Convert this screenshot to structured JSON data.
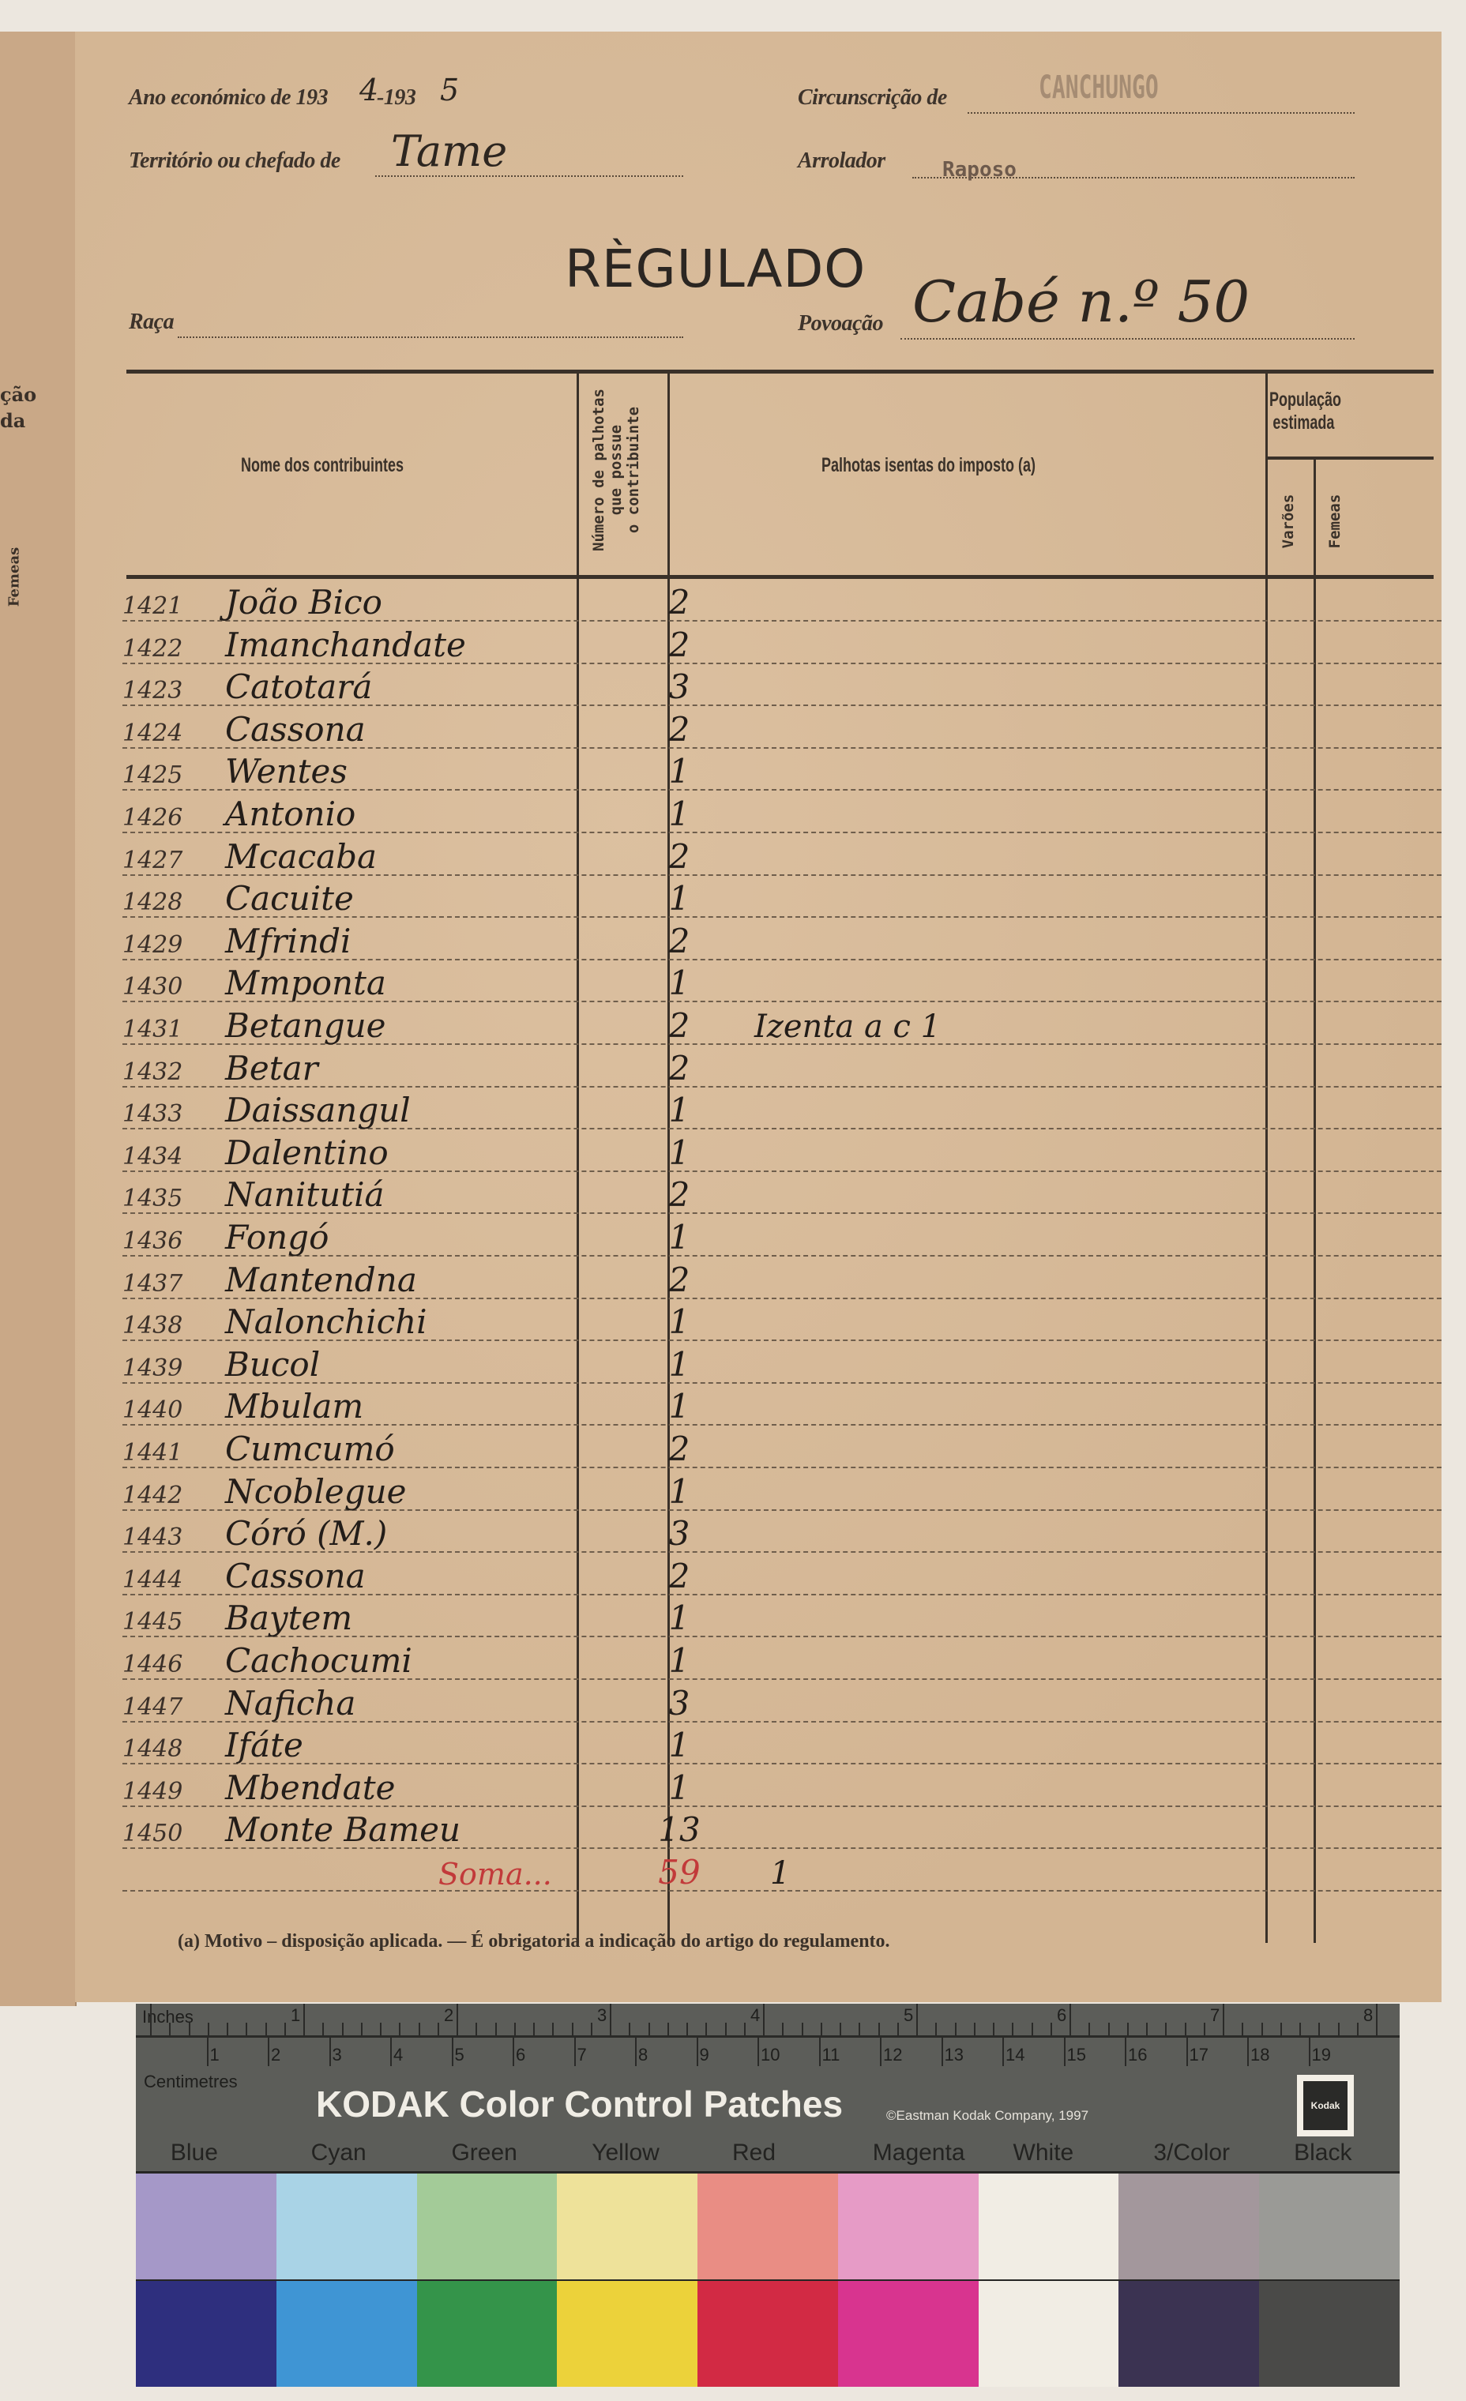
{
  "left_page": {
    "fragments": [
      "ção",
      "da",
      "Femeas"
    ]
  },
  "header": {
    "ano_label": "Ano económico de 193",
    "ano_start_digit": "4",
    "ano_sep": "-193",
    "ano_end_digit": "5",
    "territorio_label": "Território ou chefado de",
    "territorio_value": "Tame",
    "circunscricao_label": "Circunscrição de",
    "circunscricao_value": "CANCHUNGO",
    "arrolador_label": "Arrolador",
    "arrolador_value": "Raposo",
    "title": "RÈGULADO",
    "raca_label": "Raça",
    "povoacao_label": "Povoação",
    "povoacao_value": "Cabé n.º 50"
  },
  "table": {
    "columns": {
      "name": "Nome dos contribuintes",
      "count_lines": [
        "Número de palhotas",
        "que possue",
        "o contribuinte"
      ],
      "exempt": "Palhotas isentas do imposto (a)",
      "population": [
        "População",
        "estimada"
      ],
      "males": "Varões",
      "females": "Femeas"
    },
    "rows": [
      {
        "num": "1421",
        "name": "João Bico",
        "count": "2",
        "exempt": ""
      },
      {
        "num": "1422",
        "name": "Imanchandate",
        "count": "2",
        "exempt": ""
      },
      {
        "num": "1423",
        "name": "Catotará",
        "count": "3",
        "exempt": ""
      },
      {
        "num": "1424",
        "name": "Cassona",
        "count": "2",
        "exempt": ""
      },
      {
        "num": "1425",
        "name": "Wentes",
        "count": "1",
        "exempt": ""
      },
      {
        "num": "1426",
        "name": "Antonio",
        "count": "1",
        "exempt": ""
      },
      {
        "num": "1427",
        "name": "Mcacaba",
        "count": "2",
        "exempt": ""
      },
      {
        "num": "1428",
        "name": "Cacuite",
        "count": "1",
        "exempt": ""
      },
      {
        "num": "1429",
        "name": "Mfrindi",
        "count": "2",
        "exempt": ""
      },
      {
        "num": "1430",
        "name": "Mmponta",
        "count": "1",
        "exempt": ""
      },
      {
        "num": "1431",
        "name": "Betangue",
        "count": "2",
        "exempt": "Izenta a c 1"
      },
      {
        "num": "1432",
        "name": "Betar",
        "count": "2",
        "exempt": ""
      },
      {
        "num": "1433",
        "name": "Daissangul",
        "count": "1",
        "exempt": ""
      },
      {
        "num": "1434",
        "name": "Dalentino",
        "count": "1",
        "exempt": ""
      },
      {
        "num": "1435",
        "name": "Nanitutiá",
        "count": "2",
        "exempt": ""
      },
      {
        "num": "1436",
        "name": "Fongó",
        "count": "1",
        "exempt": ""
      },
      {
        "num": "1437",
        "name": "Mantendna",
        "count": "2",
        "exempt": ""
      },
      {
        "num": "1438",
        "name": "Nalonchichi",
        "count": "1",
        "exempt": ""
      },
      {
        "num": "1439",
        "name": "Bucol",
        "count": "1",
        "exempt": ""
      },
      {
        "num": "1440",
        "name": "Mbulam",
        "count": "1",
        "exempt": ""
      },
      {
        "num": "1441",
        "name": "Cumcumó",
        "count": "2",
        "exempt": ""
      },
      {
        "num": "1442",
        "name": "Ncoblegue",
        "count": "1",
        "exempt": ""
      },
      {
        "num": "1443",
        "name": "Córó (M.)",
        "count": "3",
        "exempt": ""
      },
      {
        "num": "1444",
        "name": "Cassona",
        "count": "2",
        "exempt": ""
      },
      {
        "num": "1445",
        "name": "Baytem",
        "count": "1",
        "exempt": ""
      },
      {
        "num": "1446",
        "name": "Cachocumi",
        "count": "1",
        "exempt": ""
      },
      {
        "num": "1447",
        "name": "Naficha",
        "count": "3",
        "exempt": ""
      },
      {
        "num": "1448",
        "name": "Ifáte",
        "count": "1",
        "exempt": ""
      },
      {
        "num": "1449",
        "name": "Mbendate",
        "count": "1",
        "exempt": ""
      },
      {
        "num": "1450",
        "name": "Monte Bameu",
        "count": "13",
        "exempt": ""
      }
    ],
    "sum": {
      "label": "Soma...",
      "count": "59",
      "exempt": "1",
      "color": "#c23a3a"
    }
  },
  "footnote": "(a) Motivo – disposição aplicada. — É obrigatoria a indicação do artigo do regulamento.",
  "kodak": {
    "inches_label": "Inches",
    "inch_marks": [
      "1",
      "2",
      "3",
      "4",
      "5",
      "6",
      "7",
      "8"
    ],
    "cm_marks": [
      "1",
      "2",
      "3",
      "4",
      "5",
      "6",
      "7",
      "8",
      "9",
      "10",
      "11",
      "12",
      "13",
      "14",
      "15",
      "16",
      "17",
      "18",
      "19"
    ],
    "cm_label": "Centimetres",
    "title": "KODAK Color Control Patches",
    "copyright": "©Eastman Kodak Company, 1997",
    "logo": "Kodak",
    "patches": [
      {
        "label": "Blue",
        "light": "#a598c8",
        "dark": "#2e2f7e"
      },
      {
        "label": "Cyan",
        "light": "#a9d3e6",
        "dark": "#3f95d4"
      },
      {
        "label": "Green",
        "light": "#a3cb98",
        "dark": "#34944a"
      },
      {
        "label": "Yellow",
        "light": "#eee29a",
        "dark": "#ecd23a"
      },
      {
        "label": "Red",
        "light": "#e98d84",
        "dark": "#d22a44"
      },
      {
        "label": "Magenta",
        "light": "#e69bc6",
        "dark": "#d8348f"
      },
      {
        "label": "White",
        "light": "#f1ede4",
        "dark": "#f1ede4"
      },
      {
        "label": "3/Color",
        "light": "#a3979c",
        "dark": "#3b3352"
      },
      {
        "label": "Black",
        "light": "#9a9a96",
        "dark": "#4a4a48"
      }
    ]
  }
}
